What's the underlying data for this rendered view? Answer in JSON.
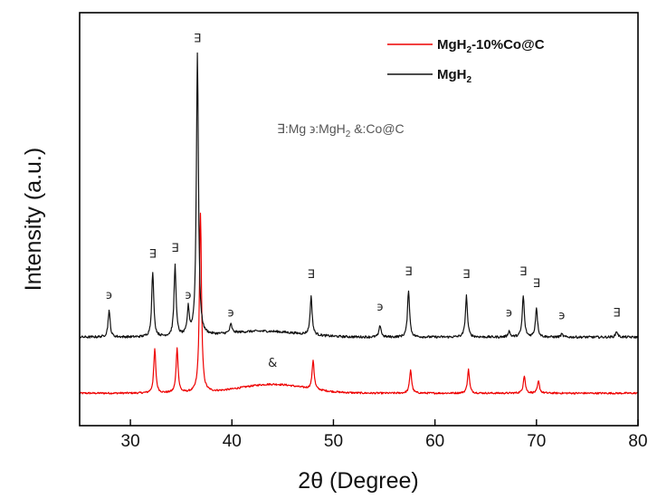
{
  "chart_data": {
    "type": "line",
    "xlabel": "2θ (Degree)",
    "ylabel": "Intensity (a.u.)",
    "xlim": [
      25,
      80
    ],
    "xticks": [
      30,
      40,
      50,
      60,
      70,
      80
    ],
    "tick_labels": [
      "30",
      "40",
      "50",
      "60",
      "70",
      "80"
    ],
    "y_ticks_shown": false,
    "legend": {
      "position": "top-right",
      "entries": [
        {
          "name_main": "MgH",
          "name_sub": "2",
          "name_rest": "-10%Co@C",
          "color": "#ee0000"
        },
        {
          "name_main": "MgH",
          "name_sub": "2",
          "name_rest": "",
          "color": "#111111"
        }
      ]
    },
    "phase_key": {
      "mg_symbol": "∃",
      "mg_label": "Mg",
      "mgh2_symbol": "϶",
      "mgh2_label": "MgH",
      "mgh2_sub": "2",
      "coc_symbol": "&",
      "coc_label": "Co@C"
    },
    "series": [
      {
        "name": "MgH₂",
        "color": "#111111",
        "baseline": 0.3,
        "noise": 0.004,
        "peaks": [
          [
            27.9,
            0.09
          ],
          [
            32.2,
            0.22
          ],
          [
            34.4,
            0.24
          ],
          [
            35.7,
            0.09
          ],
          [
            36.6,
            0.96
          ],
          [
            39.9,
            0.03
          ],
          [
            47.8,
            0.13
          ],
          [
            54.6,
            0.04
          ],
          [
            57.4,
            0.16
          ],
          [
            63.1,
            0.14
          ],
          [
            67.3,
            0.02
          ],
          [
            68.7,
            0.14
          ],
          [
            70.0,
            0.1
          ],
          [
            72.5,
            0.01
          ],
          [
            77.9,
            0.02
          ]
        ],
        "humps": [
          [
            43.0,
            0.02,
            5.0
          ]
        ]
      },
      {
        "name": "MgH₂-10%Co@C",
        "color": "#ee0000",
        "baseline": 0.11,
        "noise": 0.003,
        "peaks": [
          [
            32.4,
            0.15
          ],
          [
            34.6,
            0.15
          ],
          [
            36.9,
            0.61
          ],
          [
            48.0,
            0.1
          ],
          [
            57.6,
            0.08
          ],
          [
            63.3,
            0.08
          ],
          [
            68.8,
            0.06
          ],
          [
            70.2,
            0.04
          ]
        ],
        "humps": [
          [
            44.0,
            0.03,
            4.5
          ]
        ]
      }
    ],
    "annotations": [
      {
        "text": "∃",
        "x": 36.6,
        "y": 1.3
      },
      {
        "text": "∃",
        "x": 32.2,
        "y": 0.57
      },
      {
        "text": "∃",
        "x": 34.4,
        "y": 0.59
      },
      {
        "text": "϶",
        "x": 27.9,
        "y": 0.43
      },
      {
        "text": "϶",
        "x": 35.7,
        "y": 0.43
      },
      {
        "text": "϶",
        "x": 39.9,
        "y": 0.37
      },
      {
        "text": "∃",
        "x": 47.8,
        "y": 0.5
      },
      {
        "text": "϶",
        "x": 54.6,
        "y": 0.39
      },
      {
        "text": "∃",
        "x": 57.4,
        "y": 0.51
      },
      {
        "text": "∃",
        "x": 63.1,
        "y": 0.5
      },
      {
        "text": "϶",
        "x": 67.3,
        "y": 0.37
      },
      {
        "text": "∃",
        "x": 68.7,
        "y": 0.51
      },
      {
        "text": "∃",
        "x": 70.0,
        "y": 0.47
      },
      {
        "text": "϶",
        "x": 72.5,
        "y": 0.36
      },
      {
        "text": "∃",
        "x": 77.9,
        "y": 0.37
      },
      {
        "text": "&",
        "x": 44.0,
        "y": 0.2
      }
    ]
  }
}
